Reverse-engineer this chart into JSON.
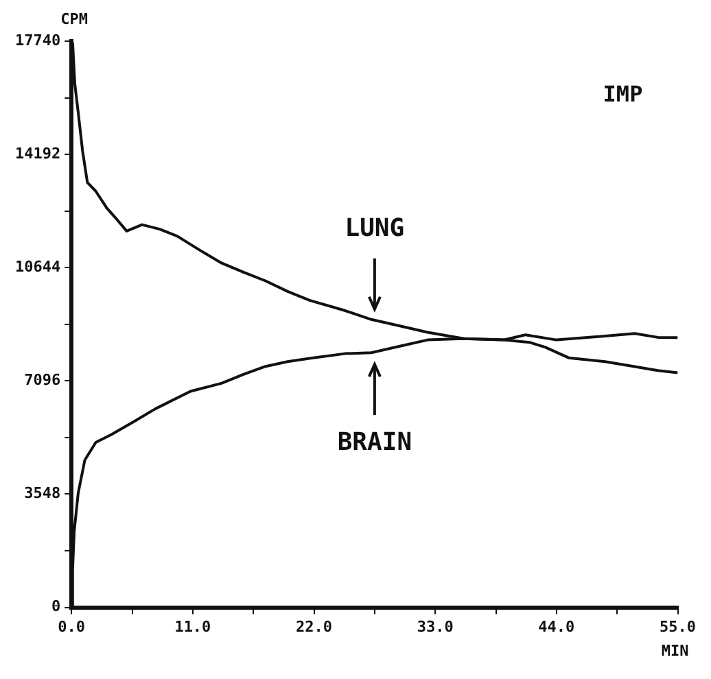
{
  "chart_data": {
    "type": "line",
    "title": "IMP",
    "xlabel": "MIN",
    "ylabel": "CPM",
    "xlim": [
      0,
      55
    ],
    "ylim": [
      0,
      17740
    ],
    "xticks": [
      {
        "value": 0,
        "label": "0.0"
      },
      {
        "value": 5.5,
        "label": null
      },
      {
        "value": 11,
        "label": "11.0"
      },
      {
        "value": 16.5,
        "label": null
      },
      {
        "value": 22,
        "label": "22.0"
      },
      {
        "value": 27.5,
        "label": null
      },
      {
        "value": 33,
        "label": "33.0"
      },
      {
        "value": 38.5,
        "label": null
      },
      {
        "value": 44,
        "label": "44.0"
      },
      {
        "value": 49.5,
        "label": null
      },
      {
        "value": 55,
        "label": "55.0"
      }
    ],
    "yticks": [
      0,
      {
        "value": 1774,
        "label": null
      },
      3548,
      {
        "value": 5322,
        "label": null
      },
      7096,
      {
        "value": 8870,
        "label": null
      },
      10644,
      {
        "value": 12418,
        "label": null
      },
      14192,
      {
        "value": 15966,
        "label": null
      },
      17740
    ],
    "grid": false,
    "legend": false,
    "marker": "none",
    "line_style": "solid",
    "series": [
      {
        "color": "#111111",
        "x": [
          0.1,
          0.3,
          0.6,
          1.0,
          1.44,
          2.2,
          3.2,
          4.0,
          5.0,
          6.4,
          8.0,
          9.6,
          11.6,
          13.6,
          15.6,
          17.6,
          19.6,
          21.6,
          24.8,
          27.2,
          30.0,
          32.3,
          35.6,
          39.2,
          41.6,
          43.0,
          45.1,
          48.4,
          51.0,
          53.2,
          55.0
        ],
        "values": [
          17700,
          16400,
          15520,
          14300,
          13310,
          13040,
          12510,
          12200,
          11790,
          11990,
          11850,
          11630,
          11200,
          10790,
          10500,
          10230,
          9900,
          9620,
          9300,
          9020,
          8800,
          8620,
          8420,
          8380,
          8300,
          8150,
          7820,
          7700,
          7550,
          7420,
          7350
        ]
      },
      {
        "color": "#111111",
        "x": [
          0.0,
          0.1,
          0.24,
          0.6,
          1.2,
          2.2,
          3.6,
          5.6,
          7.6,
          10.8,
          13.6,
          15.6,
          17.6,
          19.6,
          21.6,
          24.8,
          27.2,
          30.0,
          32.3,
          35.6,
          39.2,
          41.2,
          44.0,
          48.4,
          51.1,
          53.2,
          55.0
        ],
        "values": [
          0,
          1200,
          2370,
          3570,
          4610,
          5170,
          5410,
          5810,
          6220,
          6770,
          7020,
          7300,
          7550,
          7700,
          7800,
          7950,
          7980,
          8200,
          8380,
          8420,
          8380,
          8540,
          8380,
          8500,
          8580,
          8460,
          8450
        ]
      }
    ],
    "annotations": [
      {
        "text": "LUNG",
        "x": 27.5,
        "y": 9000
      },
      {
        "text": "BRAIN",
        "x": 27.5,
        "y": 7960
      }
    ]
  }
}
